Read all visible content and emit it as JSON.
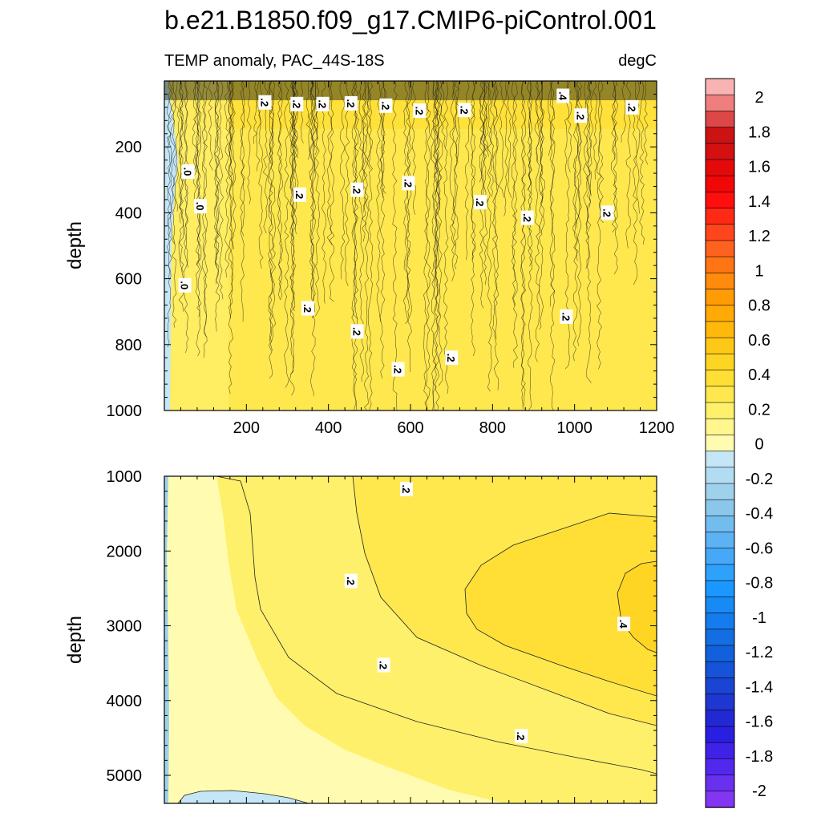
{
  "title": "b.e21.B1850.f09_g17.CMIP6-piControl.001",
  "chart_data": [
    {
      "type": "heatmap",
      "panel": "upper",
      "subtitle_left": "TEMP anomaly, PAC_44S-18S",
      "subtitle_right": "degC",
      "xlabel": "",
      "ylabel": "depth",
      "xlim": [
        0,
        1200
      ],
      "ylim": [
        1000,
        0
      ],
      "x_ticks": [
        "200",
        "400",
        "600",
        "800",
        "1000",
        "1200"
      ],
      "y_ticks": [
        "200",
        "400",
        "600",
        "800",
        "1000"
      ],
      "contour_labels": [
        {
          "text": ".2",
          "x": 245,
          "y": 65
        },
        {
          "text": ".2",
          "x": 323,
          "y": 70
        },
        {
          "text": ".2",
          "x": 386,
          "y": 70
        },
        {
          "text": ".2",
          "x": 455,
          "y": 68
        },
        {
          "text": ".2",
          "x": 540,
          "y": 75
        },
        {
          "text": ".2",
          "x": 622,
          "y": 90
        },
        {
          "text": ".2",
          "x": 732,
          "y": 88
        },
        {
          "text": ".4",
          "x": 972,
          "y": 45
        },
        {
          "text": ".2",
          "x": 1015,
          "y": 105
        },
        {
          "text": ".2",
          "x": 1140,
          "y": 80
        },
        {
          "text": ".0",
          "x": 58,
          "y": 275
        },
        {
          "text": ".0",
          "x": 88,
          "y": 380
        },
        {
          "text": ".2",
          "x": 330,
          "y": 345
        },
        {
          "text": ".2",
          "x": 470,
          "y": 330
        },
        {
          "text": ".2",
          "x": 595,
          "y": 310
        },
        {
          "text": ".2",
          "x": 770,
          "y": 368
        },
        {
          "text": ".2",
          "x": 885,
          "y": 415
        },
        {
          "text": ".2",
          "x": 1080,
          "y": 400
        },
        {
          "text": ".0",
          "x": 50,
          "y": 620
        },
        {
          "text": ".2",
          "x": 350,
          "y": 690
        },
        {
          "text": ".2",
          "x": 470,
          "y": 760
        },
        {
          "text": ".2",
          "x": 570,
          "y": 875
        },
        {
          "text": ".2",
          "x": 700,
          "y": 840
        },
        {
          "text": ".2",
          "x": 980,
          "y": 715
        }
      ]
    },
    {
      "type": "heatmap",
      "panel": "lower",
      "xlabel": "",
      "ylabel": "depth",
      "xlim": [
        0,
        1200
      ],
      "ylim": [
        5375,
        1000
      ],
      "x_ticks": [],
      "y_ticks": [
        "1000",
        "2000",
        "3000",
        "4000",
        "5000"
      ],
      "contour_labels": [
        {
          "text": ".2",
          "x": 590,
          "y": 1170
        },
        {
          "text": ".2",
          "x": 455,
          "y": 2400
        },
        {
          "text": ".2",
          "x": 535,
          "y": 3525
        },
        {
          "text": ".2",
          "x": 870,
          "y": 4475
        },
        {
          "text": ".4",
          "x": 1120,
          "y": 2975
        }
      ]
    }
  ],
  "colorbar": {
    "labels": [
      "2",
      "1.8",
      "1.6",
      "1.4",
      "1.2",
      "1",
      "0.8",
      "0.6",
      "0.4",
      "0.2",
      "0",
      "-0.2",
      "-0.4",
      "-0.6",
      "-0.8",
      "-1",
      "-1.2",
      "-1.4",
      "-1.6",
      "-1.8",
      "-2"
    ],
    "colors_top_to_bottom": [
      "#f9b3b3",
      "#ef7f7f",
      "#de4747",
      "#cb1313",
      "#d41010",
      "#e50a0a",
      "#f20707",
      "#ff0e0e",
      "#ff2a16",
      "#ff451c",
      "#ff611e",
      "#ff7514",
      "#ff8a0b",
      "#ff9b05",
      "#ffaa05",
      "#ffb90b",
      "#ffc817",
      "#ffd524",
      "#ffdf36",
      "#ffe84e",
      "#fff06b",
      "#fff68c",
      "#fffbb0",
      "#c4e6f6",
      "#b1dcf1",
      "#9ed2ec",
      "#8ac7eb",
      "#73bcee",
      "#5cb2f2",
      "#45a9f7",
      "#2ea1fb",
      "#1a98ff",
      "#178af6",
      "#157ced",
      "#136ee4",
      "#1161dc",
      "#1553d8",
      "#1a45d4",
      "#1e37d0",
      "#2229d4",
      "#2a1ee0",
      "#3e22e8",
      "#5328ee",
      "#6a30f0",
      "#8236f2"
    ]
  }
}
